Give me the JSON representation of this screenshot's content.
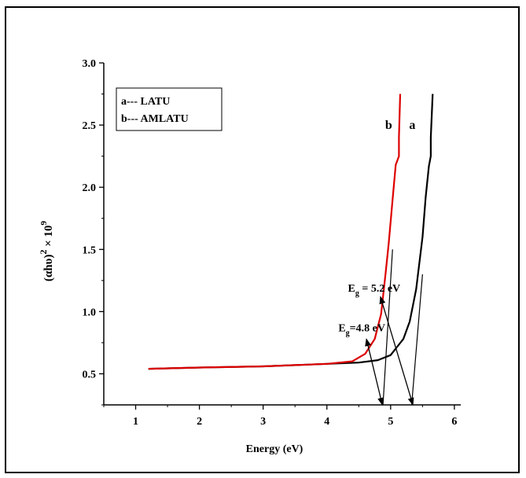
{
  "chart_data": {
    "type": "line",
    "title": "",
    "xlabel": "Energy (eV)",
    "ylabel_main": "(αhυ)",
    "ylabel_sup": "2",
    "ylabel_tail": "× 10",
    "ylabel_exp": "9",
    "xlim": [
      0.5,
      6.1
    ],
    "ylim": [
      0.25,
      3.0
    ],
    "x_ticks": [
      1,
      2,
      3,
      4,
      5,
      6
    ],
    "x_tick_labels": [
      "1",
      "2",
      "3",
      "4",
      "5",
      "6"
    ],
    "y_ticks": [
      0.5,
      1.0,
      1.5,
      2.0,
      2.5,
      3.0
    ],
    "y_tick_labels": [
      "0.5",
      "1.0",
      "1.5",
      "2.0",
      "2.5",
      "3.0"
    ],
    "grid": false,
    "legend_position": "top-left",
    "legend": [
      "a--- LATU",
      "b--- AMLATU"
    ],
    "series": [
      {
        "name": "a",
        "color": "#000000",
        "x": [
          1.2,
          2.0,
          3.0,
          4.0,
          4.5,
          4.8,
          5.0,
          5.2,
          5.3,
          5.4,
          5.5,
          5.55,
          5.6,
          5.63,
          5.63,
          5.66
        ],
        "y": [
          0.54,
          0.55,
          0.56,
          0.58,
          0.59,
          0.61,
          0.65,
          0.78,
          0.92,
          1.18,
          1.6,
          1.92,
          2.17,
          2.25,
          2.4,
          2.75
        ]
      },
      {
        "name": "b",
        "color": "#dd0000",
        "x": [
          1.2,
          2.0,
          3.0,
          4.0,
          4.4,
          4.6,
          4.75,
          4.85,
          4.92,
          4.97,
          5.03,
          5.08,
          5.13,
          5.13,
          5.15
        ],
        "y": [
          0.54,
          0.55,
          0.56,
          0.58,
          0.6,
          0.66,
          0.78,
          0.98,
          1.3,
          1.55,
          1.9,
          2.18,
          2.25,
          2.4,
          2.75
        ]
      }
    ],
    "series_labels": [
      {
        "text": "b",
        "x": 4.97,
        "y": 2.47
      },
      {
        "text": "a",
        "x": 5.34,
        "y": 2.47
      }
    ],
    "annotations": [
      {
        "name": "eg-5-2",
        "label_main": "E",
        "label_sub": "g",
        "label_tail": " = 5.2 eV",
        "text_x": 4.33,
        "text_y": 1.16,
        "arrow_from": [
          4.84,
          1.12
        ],
        "arrow_to": [
          5.35,
          0.25
        ]
      },
      {
        "name": "eg-4-8",
        "label_main": "E",
        "label_sub": "g",
        "label_tail": "=4.8 eV",
        "text_x": 4.18,
        "text_y": 0.84,
        "arrow_from": [
          4.62,
          0.78
        ],
        "arrow_to": [
          4.87,
          0.25
        ]
      }
    ],
    "tangents": [
      {
        "color": "#000000",
        "x": [
          4.88,
          5.03
        ],
        "y": [
          0.25,
          1.5
        ]
      },
      {
        "color": "#000000",
        "x": [
          5.33,
          5.5
        ],
        "y": [
          0.25,
          1.3
        ]
      }
    ]
  }
}
